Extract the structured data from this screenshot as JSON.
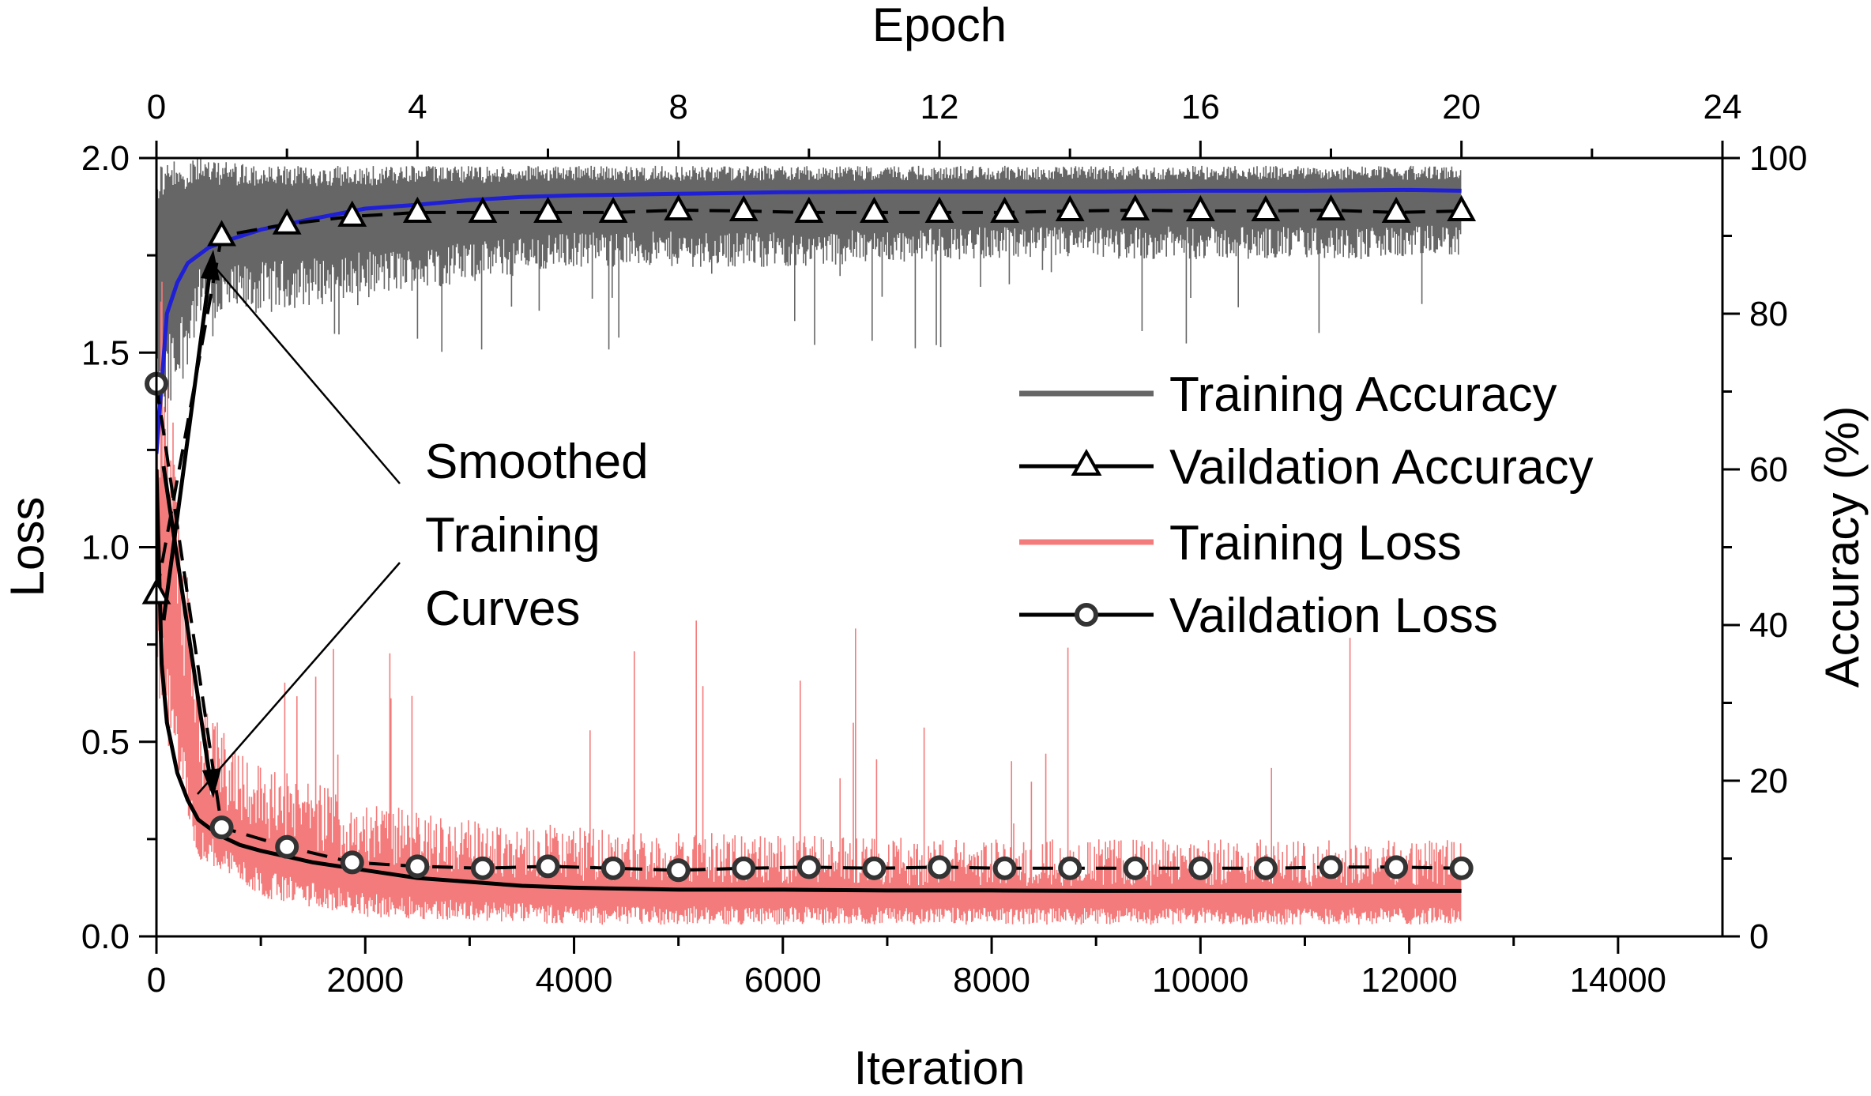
{
  "chart_data": {
    "type": "line",
    "title": "",
    "xlabel": "Iteration",
    "x2label": "Epoch",
    "ylabel": "Loss",
    "y2label": "Accuracy  (%)",
    "xlim": [
      0,
      15000
    ],
    "x2lim": [
      0,
      24
    ],
    "ylim": [
      0,
      2.0
    ],
    "y2lim": [
      0,
      100
    ],
    "xticks": [
      "0",
      "2000",
      "4000",
      "6000",
      "8000",
      "10000",
      "12000",
      "14000"
    ],
    "x2ticks": [
      "0",
      "4",
      "8",
      "12",
      "16",
      "20",
      "24"
    ],
    "yticks": [
      "0.0",
      "0.5",
      "1.0",
      "1.5",
      "2.0"
    ],
    "y2ticks": [
      "0",
      "20",
      "40",
      "60",
      "80",
      "100"
    ],
    "grid": false,
    "legend_position": "center-right",
    "legend": [
      {
        "label": "Training Accuracy",
        "color": "#666666",
        "marker": "none"
      },
      {
        "label": "Vaildation Accuracy",
        "color": "#000000",
        "marker": "triangle"
      },
      {
        "label": "Training Loss",
        "color": "#f47b7b",
        "marker": "none"
      },
      {
        "label": "Vaildation Loss",
        "color": "#000000",
        "marker": "circle"
      }
    ],
    "annotation": {
      "lines": [
        "Smoothed",
        "Training",
        "Curves"
      ]
    },
    "series": [
      {
        "name": "Vaildation Accuracy",
        "axis": "right",
        "color": "#000000",
        "marker": "triangle",
        "x": [
          0,
          625,
          1250,
          1875,
          2500,
          3125,
          3750,
          4375,
          5000,
          5625,
          6250,
          6875,
          7500,
          8125,
          8750,
          9375,
          10000,
          10625,
          11250,
          11875,
          12500
        ],
        "y": [
          44,
          90,
          91.5,
          92.5,
          93,
          93,
          93,
          93,
          93.3,
          93.2,
          93,
          93,
          93,
          93,
          93.2,
          93.3,
          93.2,
          93.2,
          93.3,
          93,
          93.2
        ]
      },
      {
        "name": "Vaildation Loss",
        "axis": "left",
        "color": "#000000",
        "marker": "circle",
        "x": [
          0,
          625,
          1250,
          1875,
          2500,
          3125,
          3750,
          4375,
          5000,
          5625,
          6250,
          6875,
          7500,
          8125,
          8750,
          9375,
          10000,
          10625,
          11250,
          11875,
          12500
        ],
        "y": [
          1.42,
          0.28,
          0.23,
          0.19,
          0.18,
          0.175,
          0.18,
          0.175,
          0.17,
          0.175,
          0.178,
          0.175,
          0.178,
          0.175,
          0.175,
          0.175,
          0.175,
          0.175,
          0.178,
          0.178,
          0.175
        ]
      },
      {
        "name": "Smoothed Training Accuracy",
        "axis": "right",
        "color": "#1f1fd6",
        "x": [
          0,
          100,
          200,
          300,
          500,
          700,
          1000,
          1500,
          2000,
          2500,
          3000,
          3500,
          4000,
          5000,
          6000,
          7000,
          8000,
          9000,
          10000,
          11000,
          12000,
          12500
        ],
        "y": [
          62,
          80,
          84,
          86.5,
          88.5,
          89.5,
          90.8,
          92.2,
          93.5,
          94,
          94.6,
          95,
          95.2,
          95.4,
          95.6,
          95.7,
          95.7,
          95.7,
          95.8,
          95.8,
          95.9,
          95.8
        ]
      },
      {
        "name": "Smoothed Training Loss",
        "axis": "left",
        "color": "#000000",
        "x": [
          0,
          50,
          100,
          200,
          300,
          400,
          600,
          800,
          1000,
          1500,
          2000,
          2500,
          3000,
          3500,
          4000,
          5000,
          6000,
          7000,
          8000,
          9000,
          10000,
          11000,
          12000,
          12500
        ],
        "y": [
          1.2,
          0.7,
          0.55,
          0.42,
          0.35,
          0.3,
          0.26,
          0.235,
          0.22,
          0.19,
          0.17,
          0.15,
          0.14,
          0.13,
          0.125,
          0.12,
          0.12,
          0.118,
          0.118,
          0.117,
          0.117,
          0.117,
          0.117,
          0.117
        ]
      },
      {
        "name": "Training Accuracy",
        "axis": "right",
        "color": "#666666",
        "x_range": [
          0,
          12500
        ],
        "band_low_y": [
          60,
          78,
          80,
          82,
          84,
          86,
          86,
          87,
          87,
          87,
          87.5
        ],
        "band_high_y": [
          100,
          100,
          99,
          99,
          99,
          99,
          99,
          99,
          99,
          99,
          99
        ],
        "band_x": [
          0,
          400,
          1000,
          2000,
          3000,
          4000,
          6000,
          8000,
          10000,
          12000,
          12500
        ],
        "spike_min_y": 75
      },
      {
        "name": "Training Loss",
        "axis": "left",
        "color": "#f47b7b",
        "x_range": [
          0,
          12500
        ],
        "band_low_y": [
          0.6,
          0.2,
          0.1,
          0.05,
          0.04,
          0.03,
          0.03,
          0.03,
          0.03,
          0.03,
          0.03
        ],
        "band_high_y": [
          1.9,
          0.6,
          0.45,
          0.35,
          0.3,
          0.28,
          0.26,
          0.25,
          0.25,
          0.25,
          0.25
        ],
        "band_x": [
          0,
          400,
          1000,
          2000,
          3000,
          4000,
          6000,
          8000,
          10000,
          12000,
          12500
        ],
        "spike_max_y": 0.9
      }
    ]
  }
}
